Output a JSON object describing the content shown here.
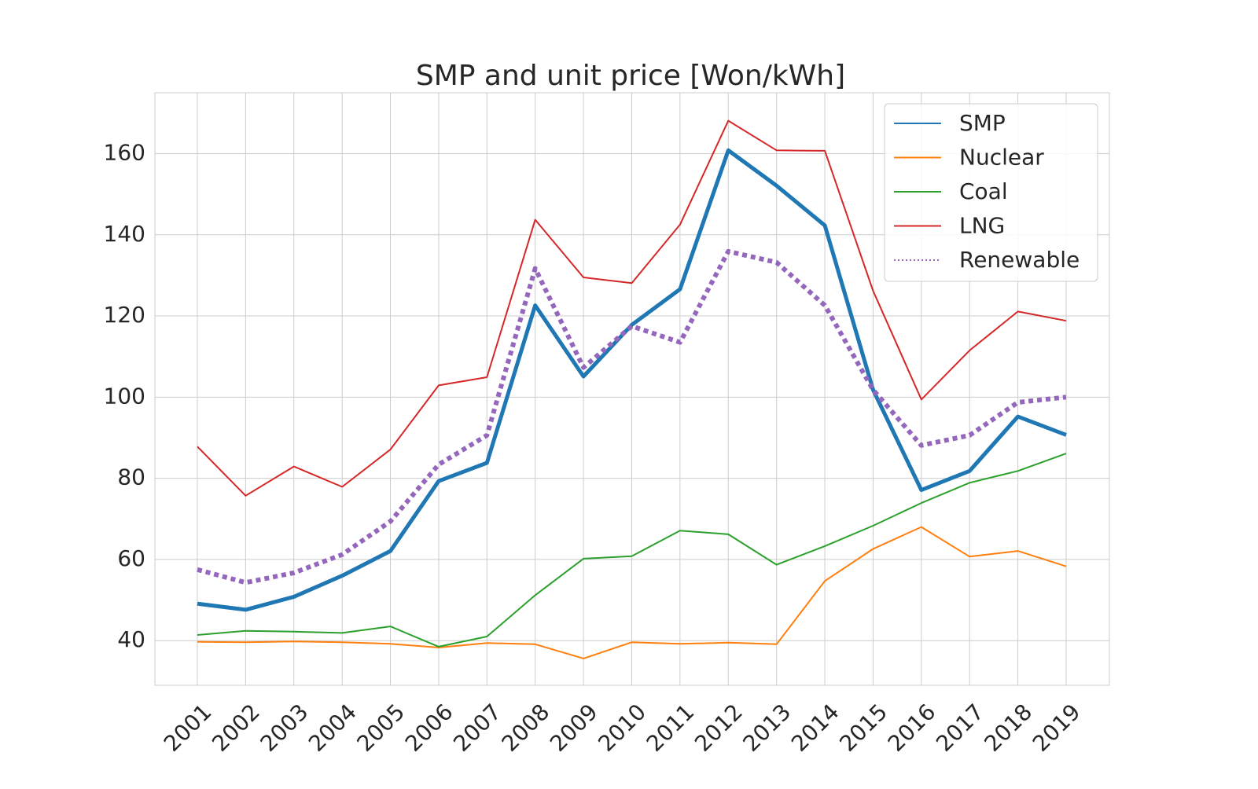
{
  "chart_data": {
    "type": "line",
    "title": "SMP and unit price [Won/kWh]",
    "xlabel": "",
    "ylabel": "",
    "categories": [
      "2001",
      "2002",
      "2003",
      "2004",
      "2005",
      "2006",
      "2007",
      "2008",
      "2009",
      "2010",
      "2011",
      "2012",
      "2013",
      "2014",
      "2015",
      "2016",
      "2017",
      "2018",
      "2019"
    ],
    "ylim": [
      29,
      175
    ],
    "yticks": [
      40,
      60,
      80,
      100,
      120,
      140,
      160
    ],
    "grid": true,
    "legend_position": "top-right",
    "series": [
      {
        "name": "SMP",
        "color": "#1f77b4",
        "style": "solid-thick",
        "values": [
          49.1,
          47.6,
          50.8,
          56.0,
          62.1,
          79.3,
          83.8,
          122.6,
          105.1,
          117.8,
          126.6,
          160.8,
          152.1,
          142.3,
          101.8,
          77.1,
          81.8,
          95.2,
          90.7
        ]
      },
      {
        "name": "Nuclear",
        "color": "#ff7f0e",
        "style": "solid",
        "values": [
          39.7,
          39.6,
          39.8,
          39.6,
          39.2,
          38.3,
          39.4,
          39.1,
          35.6,
          39.6,
          39.2,
          39.5,
          39.1,
          54.7,
          62.6,
          68.0,
          60.7,
          62.1,
          58.3
        ]
      },
      {
        "name": "Coal",
        "color": "#2ca02c",
        "style": "solid",
        "values": [
          41.4,
          42.4,
          42.2,
          41.9,
          43.5,
          38.5,
          41.0,
          51.2,
          60.2,
          60.8,
          67.1,
          66.2,
          58.7,
          63.3,
          68.3,
          73.9,
          78.9,
          81.8,
          86.1
        ]
      },
      {
        "name": "LNG",
        "color": "#d62728",
        "style": "solid",
        "values": [
          87.8,
          75.7,
          82.9,
          77.9,
          87.1,
          102.9,
          104.9,
          143.7,
          129.5,
          128.1,
          142.5,
          168.1,
          160.8,
          160.7,
          126.2,
          99.4,
          111.5,
          121.1,
          118.8
        ]
      },
      {
        "name": "Renewable",
        "color": "#9467bd",
        "style": "dotted-thick",
        "values": [
          57.5,
          54.3,
          56.7,
          61.2,
          69.4,
          83.4,
          90.6,
          131.7,
          107.3,
          117.5,
          113.5,
          135.9,
          133.2,
          122.6,
          101.8,
          88.1,
          90.6,
          98.7,
          100.0
        ]
      }
    ]
  }
}
